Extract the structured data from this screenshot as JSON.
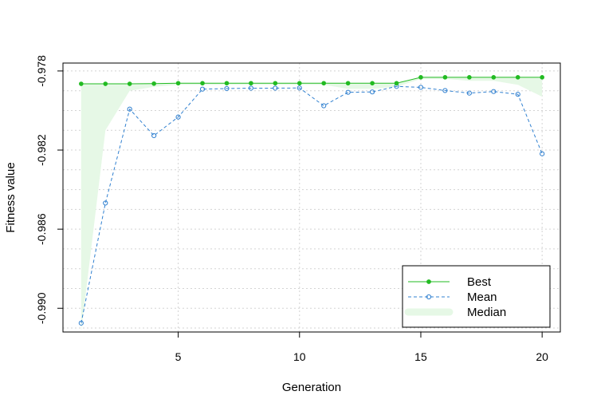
{
  "chart_data": {
    "type": "line",
    "xlabel": "Generation",
    "ylabel": "Fitness value",
    "xlim": [
      0.25,
      20.75
    ],
    "ylim": [
      -0.9912,
      -0.9776
    ],
    "xticks": [
      5,
      10,
      15,
      20
    ],
    "xtick_labels": [
      "5",
      "10",
      "15",
      "20"
    ],
    "yticks": [
      -0.978,
      -0.982,
      -0.986,
      -0.99
    ],
    "ytick_labels": [
      "-0.978",
      "-0.982",
      "-0.986",
      "-0.990"
    ],
    "grid": true,
    "legend_position": "bottom-right",
    "x": [
      1,
      2,
      3,
      4,
      5,
      6,
      7,
      8,
      9,
      10,
      11,
      12,
      13,
      14,
      15,
      16,
      17,
      18,
      19,
      20
    ],
    "series": [
      {
        "name": "Best",
        "style": "solid-filled-dots",
        "color": "#22bb22",
        "values": [
          -0.97865,
          -0.97865,
          -0.97865,
          -0.97864,
          -0.97862,
          -0.97862,
          -0.97862,
          -0.97862,
          -0.97862,
          -0.97862,
          -0.97862,
          -0.97862,
          -0.97862,
          -0.97862,
          -0.97832,
          -0.97832,
          -0.97832,
          -0.97832,
          -0.97832,
          -0.97832
        ]
      },
      {
        "name": "Mean",
        "style": "dashed-open-circles",
        "color": "#3080d0",
        "values": [
          -0.99075,
          -0.98468,
          -0.97993,
          -0.98127,
          -0.98033,
          -0.97892,
          -0.97889,
          -0.97887,
          -0.97887,
          -0.97886,
          -0.97976,
          -0.97908,
          -0.97906,
          -0.97878,
          -0.97883,
          -0.97899,
          -0.97912,
          -0.97904,
          -0.97918,
          -0.98219
        ]
      },
      {
        "name": "Median",
        "style": "band",
        "color": "#e6f8e6",
        "values": [
          -0.9912,
          -0.981,
          -0.979,
          -0.9788,
          -0.9787,
          -0.9787,
          -0.9787,
          -0.9787,
          -0.9787,
          -0.9787,
          -0.9787,
          -0.9789,
          -0.9789,
          -0.9788,
          -0.9784,
          -0.9784,
          -0.9785,
          -0.9785,
          -0.9787,
          -0.9793
        ]
      }
    ]
  }
}
